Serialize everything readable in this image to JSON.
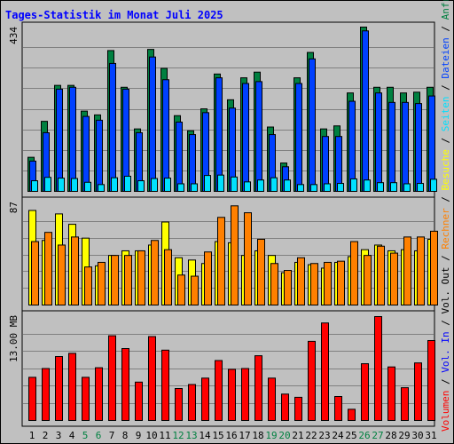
{
  "title": "Tages-Statistik im Monat Juli 2025",
  "colors": {
    "title": "#0000ff",
    "anfragen": "#008040",
    "dateien": "#0040ff",
    "seiten": "#00e0ff",
    "besuche": "#ffff00",
    "rechner": "#ff8000",
    "volumen": "#ff0000",
    "weekend_day": "#008040",
    "panel_bg": "#c0c0c0",
    "gridline": "#808080"
  },
  "right_legend": [
    {
      "text": "Volumen",
      "color": "#ff0000"
    },
    {
      "text": " / ",
      "color": "#000000"
    },
    {
      "text": "Vol. In",
      "color": "#0000ff"
    },
    {
      "text": " / ",
      "color": "#000000"
    },
    {
      "text": "Vol. Out",
      "color": "#000000"
    },
    {
      "text": " / ",
      "color": "#000000"
    },
    {
      "text": "Rechner",
      "color": "#ff8000"
    },
    {
      "text": " / ",
      "color": "#000000"
    },
    {
      "text": "Besuche",
      "color": "#ffff00"
    },
    {
      "text": " / ",
      "color": "#000000"
    },
    {
      "text": "Seiten",
      "color": "#00e0ff"
    },
    {
      "text": " / ",
      "color": "#000000"
    },
    {
      "text": "Dateien",
      "color": "#0040ff"
    },
    {
      "text": " / ",
      "color": "#000000"
    },
    {
      "text": "Anfragen",
      "color": "#008040"
    }
  ],
  "chart_data": [
    {
      "type": "bar",
      "axis_max_label": "434",
      "ylim": [
        0,
        434
      ],
      "grid": true,
      "categories": [
        "1",
        "2",
        "3",
        "4",
        "5",
        "6",
        "7",
        "8",
        "9",
        "10",
        "11",
        "12",
        "13",
        "14",
        "15",
        "16",
        "17",
        "18",
        "19",
        "20",
        "21",
        "22",
        "23",
        "24",
        "25",
        "26",
        "27",
        "28",
        "29",
        "30",
        "31"
      ],
      "weekend_days": [
        "5",
        "6",
        "12",
        "13",
        "19",
        "20",
        "26",
        "27"
      ],
      "series": [
        {
          "name": "Anfragen",
          "color": "#008040",
          "values": [
            90,
            185,
            280,
            280,
            212,
            202,
            372,
            275,
            165,
            375,
            325,
            200,
            160,
            218,
            310,
            242,
            300,
            315,
            170,
            75,
            300,
            367,
            165,
            173,
            260,
            434,
            275,
            275,
            260,
            262,
            275
          ]
        },
        {
          "name": "Dateien",
          "color": "#0040ff",
          "values": [
            80,
            155,
            270,
            275,
            198,
            188,
            338,
            270,
            155,
            355,
            295,
            183,
            150,
            208,
            300,
            220,
            285,
            290,
            150,
            65,
            285,
            350,
            145,
            145,
            238,
            424,
            260,
            235,
            235,
            232,
            252
          ]
        },
        {
          "name": "Seiten",
          "color": "#00e0ff",
          "values": [
            28,
            37,
            35,
            34,
            24,
            18,
            36,
            40,
            28,
            34,
            35,
            20,
            20,
            42,
            43,
            38,
            25,
            30,
            36,
            30,
            18,
            18,
            20,
            21,
            33,
            30,
            23,
            23,
            20,
            21,
            32
          ]
        }
      ]
    },
    {
      "type": "bar",
      "axis_max_label": "87",
      "ylim": [
        0,
        87
      ],
      "grid": true,
      "categories": [
        "1",
        "2",
        "3",
        "4",
        "5",
        "6",
        "7",
        "8",
        "9",
        "10",
        "11",
        "12",
        "13",
        "14",
        "15",
        "16",
        "17",
        "18",
        "19",
        "20",
        "21",
        "22",
        "23",
        "24",
        "25",
        "26",
        "27",
        "28",
        "29",
        "30",
        "31"
      ],
      "series": [
        {
          "name": "Besuche",
          "color": "#ffff00",
          "values": [
            82,
            56,
            79,
            70,
            58,
            34,
            43,
            47,
            47,
            52,
            72,
            41,
            39,
            36,
            55,
            54,
            43,
            47,
            43,
            28,
            37,
            35,
            32,
            37,
            42,
            48,
            52,
            47,
            48,
            47,
            57
          ]
        },
        {
          "name": "Rechner",
          "color": "#ff8000",
          "values": [
            55,
            63,
            52,
            59,
            33,
            37,
            43,
            43,
            47,
            56,
            48,
            26,
            25,
            46,
            76,
            86,
            80,
            57,
            36,
            30,
            41,
            36,
            37,
            38,
            55,
            43,
            51,
            45,
            59,
            59,
            64
          ]
        }
      ]
    },
    {
      "type": "bar",
      "axis_max_label": "13.00 MB",
      "ylim": [
        0,
        13.0
      ],
      "grid": true,
      "categories": [
        "1",
        "2",
        "3",
        "4",
        "5",
        "6",
        "7",
        "8",
        "9",
        "10",
        "11",
        "12",
        "13",
        "14",
        "15",
        "16",
        "17",
        "18",
        "19",
        "20",
        "21",
        "22",
        "23",
        "24",
        "25",
        "26",
        "27",
        "28",
        "29",
        "30",
        "31"
      ],
      "series": [
        {
          "name": "Volumen",
          "color": "#ff0000",
          "values": [
            5.4,
            6.5,
            8.0,
            8.4,
            5.4,
            6.6,
            10.6,
            9.0,
            4.8,
            10.5,
            8.8,
            4.0,
            4.5,
            5.3,
            7.5,
            6.4,
            6.5,
            8.1,
            5.3,
            3.3,
            2.9,
            9.9,
            12.2,
            3.0,
            1.4,
            7.1,
            13.0,
            6.7,
            4.1,
            7.2,
            10.0
          ]
        }
      ]
    }
  ]
}
